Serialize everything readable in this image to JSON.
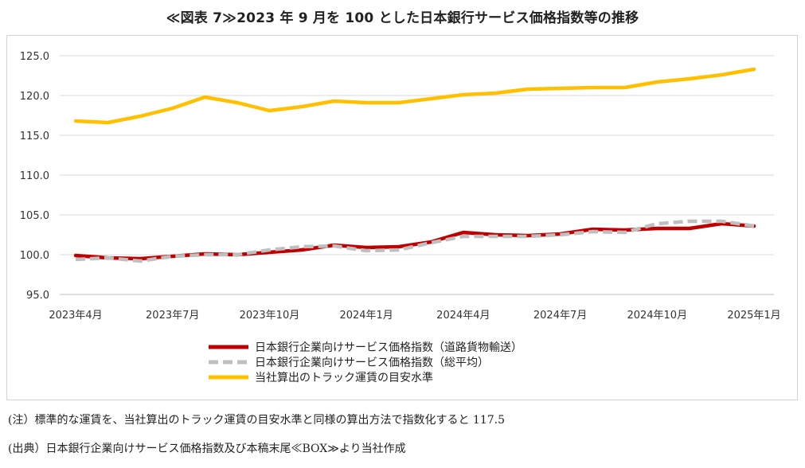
{
  "title": "≪図表 7≫2023 年 9 月を 100 とした日本銀行サービス価格指数等の推移",
  "notes": [
    "(注）標準的な運賃を、当社算出のトラック運賃の目安水準と同様の算出方法で指数化すると 117.5",
    "(出典）日本銀行企業向けサービス価格指数及び本稿末尾≪BOX≫より当社作成"
  ],
  "chart_data": {
    "type": "line",
    "title": "",
    "xlabel": "",
    "ylabel": "",
    "ylim": [
      95.0,
      125.0
    ],
    "y_ticks": [
      "95.0",
      "100.0",
      "105.0",
      "110.0",
      "115.0",
      "120.0",
      "125.0"
    ],
    "x_tick_labels": [
      "2023年4月",
      "2023年7月",
      "2023年10月",
      "2024年1月",
      "2024年4月",
      "2024年7月",
      "2024年10月",
      "2025年1月"
    ],
    "x": [
      "2023-04",
      "2023-05",
      "2023-06",
      "2023-07",
      "2023-08",
      "2023-09",
      "2023-10",
      "2023-11",
      "2023-12",
      "2024-01",
      "2024-02",
      "2024-03",
      "2024-04",
      "2024-05",
      "2024-06",
      "2024-07",
      "2024-08",
      "2024-09",
      "2024-10",
      "2024-11",
      "2024-12",
      "2025-01"
    ],
    "grid": true,
    "legend_position": "bottom",
    "series": [
      {
        "name": "日本銀行企業向けサービス価格指数（道路貨物輸送）",
        "color": "#c00000",
        "style": "solid",
        "values": [
          99.9,
          99.6,
          99.5,
          99.8,
          100.1,
          100.0,
          100.3,
          100.6,
          101.2,
          100.9,
          101.0,
          101.6,
          102.8,
          102.5,
          102.4,
          102.6,
          103.2,
          103.1,
          103.3,
          103.3,
          103.9,
          103.6
        ]
      },
      {
        "name": "日本銀行企業向けサービス価格指数（総平均）",
        "color": "#bfbfbf",
        "style": "dashed",
        "values": [
          99.4,
          99.6,
          99.2,
          99.8,
          100.0,
          100.0,
          100.6,
          101.0,
          101.1,
          100.5,
          100.6,
          101.5,
          102.3,
          102.3,
          102.3,
          102.5,
          102.9,
          102.8,
          103.9,
          104.2,
          104.2,
          103.6
        ]
      },
      {
        "name": "当社算出のトラック運賃の目安水準",
        "color": "#ffc000",
        "style": "solid",
        "values": [
          116.8,
          116.6,
          117.4,
          118.4,
          119.8,
          119.1,
          118.1,
          118.6,
          119.3,
          119.1,
          119.1,
          119.6,
          120.1,
          120.3,
          120.8,
          120.9,
          121.0,
          121.0,
          121.7,
          122.1,
          122.6,
          123.3
        ]
      }
    ]
  }
}
